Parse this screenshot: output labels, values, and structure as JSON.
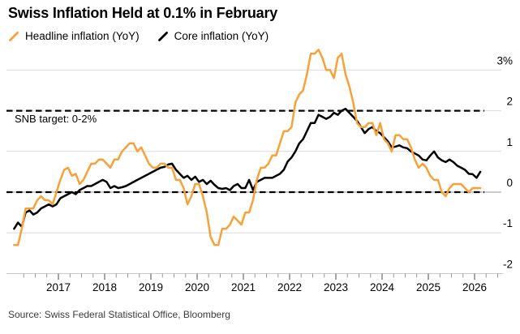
{
  "title": "Swiss Inflation Held at 0.1% in February",
  "legend": {
    "items": [
      {
        "label": "Headline inflation (YoY)",
        "color": "#F7A139"
      },
      {
        "label": "Core inflation (YoY)",
        "color": "#000000"
      }
    ]
  },
  "annotations": {
    "snb_target": "SNB target: 0-2%"
  },
  "source": "Source: Swiss Federal Statistical Office, Bloomberg",
  "chart_data": {
    "type": "line",
    "title": "Swiss Inflation Held at 0.1% in February",
    "x_start_year": 2016,
    "x_start_month": 1,
    "x_frequency": "monthly",
    "x_tick_years": [
      2017,
      2018,
      2019,
      2020,
      2021,
      2022,
      2023,
      2024,
      2025,
      2026
    ],
    "ylim": [
      -2,
      3.6
    ],
    "y_unit": "%",
    "y_ticks": [
      {
        "value": 3,
        "label": "3%"
      },
      {
        "value": 2,
        "label": "2"
      },
      {
        "value": 1,
        "label": "1"
      },
      {
        "value": 0,
        "label": "0"
      },
      {
        "value": -1,
        "label": "-1"
      },
      {
        "value": -2,
        "label": "-2"
      }
    ],
    "reference_lines": [
      {
        "value": 2,
        "style": "dashed",
        "label": "SNB target upper bound"
      },
      {
        "value": 0,
        "style": "dashed",
        "label": "SNB target lower bound"
      }
    ],
    "grid": "horizontal",
    "legend_position": "top-left",
    "series": [
      {
        "name": "Headline inflation (YoY)",
        "color": "#F7A139",
        "values": [
          -1.3,
          -1.3,
          -0.9,
          -0.4,
          -0.4,
          -0.4,
          -0.2,
          -0.1,
          -0.2,
          -0.2,
          -0.3,
          0.0,
          0.3,
          0.55,
          0.6,
          0.4,
          0.45,
          0.2,
          0.3,
          0.5,
          0.7,
          0.7,
          0.8,
          0.8,
          0.7,
          0.6,
          0.8,
          0.8,
          1.0,
          1.1,
          1.2,
          1.2,
          1.0,
          1.1,
          0.9,
          0.7,
          0.6,
          0.6,
          0.7,
          0.7,
          0.6,
          0.6,
          0.3,
          0.3,
          0.1,
          -0.3,
          -0.1,
          0.2,
          0.2,
          -0.1,
          -0.5,
          -1.1,
          -1.3,
          -1.3,
          -0.9,
          -0.9,
          -0.8,
          -0.6,
          -0.7,
          -0.8,
          -0.5,
          -0.5,
          -0.2,
          0.3,
          0.6,
          0.6,
          0.7,
          0.9,
          0.9,
          1.2,
          1.5,
          1.5,
          1.6,
          2.2,
          2.4,
          2.5,
          2.9,
          3.4,
          3.4,
          3.5,
          3.3,
          3.0,
          3.0,
          2.8,
          3.3,
          3.4,
          2.9,
          2.6,
          2.2,
          1.7,
          1.6,
          1.6,
          1.7,
          1.7,
          1.4,
          1.7,
          1.3,
          1.2,
          1.0,
          1.4,
          1.4,
          1.3,
          1.3,
          1.1,
          0.8,
          0.6,
          0.7,
          0.6,
          0.4,
          0.3,
          0.3,
          0.0,
          -0.1,
          0.1,
          0.2,
          0.2,
          0.2,
          0.1,
          0.0,
          0.1,
          0.1,
          0.1
        ]
      },
      {
        "name": "Core inflation (YoY)",
        "color": "#000000",
        "values": [
          -0.9,
          -0.75,
          -0.85,
          -0.5,
          -0.45,
          -0.55,
          -0.5,
          -0.4,
          -0.35,
          -0.3,
          -0.35,
          -0.3,
          -0.15,
          -0.1,
          -0.05,
          0.0,
          -0.05,
          0.05,
          0.1,
          0.15,
          0.15,
          0.2,
          0.25,
          0.3,
          0.25,
          0.1,
          0.15,
          0.1,
          0.12,
          0.15,
          0.2,
          0.25,
          0.3,
          0.35,
          0.4,
          0.45,
          0.5,
          0.55,
          0.6,
          0.62,
          0.68,
          0.7,
          0.55,
          0.45,
          0.35,
          0.4,
          0.3,
          0.38,
          0.25,
          0.3,
          0.2,
          0.28,
          0.18,
          0.1,
          0.08,
          0.1,
          0.05,
          0.15,
          0.2,
          0.1,
          0.1,
          0.3,
          0.05,
          0.25,
          0.3,
          0.35,
          0.35,
          0.35,
          0.4,
          0.45,
          0.55,
          0.75,
          0.85,
          1.0,
          1.2,
          1.3,
          1.5,
          1.7,
          1.7,
          1.9,
          1.85,
          1.8,
          1.85,
          1.95,
          1.9,
          2.0,
          2.05,
          1.95,
          1.85,
          1.75,
          1.6,
          1.45,
          1.55,
          1.6,
          1.5,
          1.45,
          1.35,
          1.25,
          1.1,
          1.12,
          1.15,
          1.1,
          1.08,
          1.0,
          0.95,
          0.9,
          0.8,
          0.78,
          0.9,
          1.0,
          0.85,
          0.78,
          0.74,
          0.8,
          0.74,
          0.65,
          0.6,
          0.55,
          0.45,
          0.44,
          0.35,
          0.5
        ]
      }
    ]
  }
}
